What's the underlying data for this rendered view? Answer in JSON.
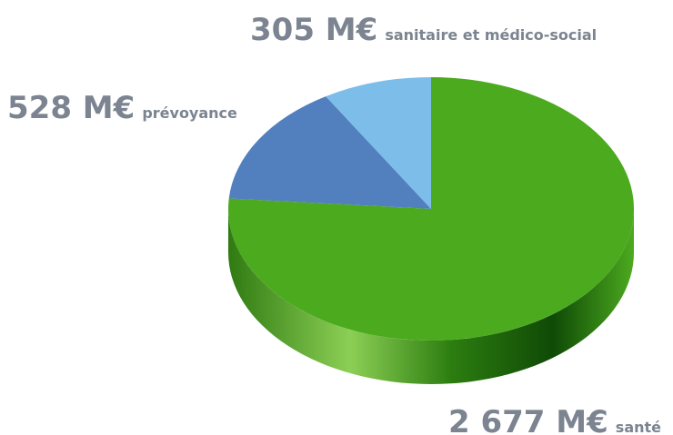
{
  "chart_data": {
    "type": "pie",
    "categories": [
      "santé",
      "prévoyance",
      "sanitaire et médico-social"
    ],
    "values": [
      2677,
      528,
      305
    ],
    "value_labels": [
      "2 677 M€",
      "528 M€",
      "305 M€"
    ],
    "colors": [
      "#4caa1f",
      "#3f72b8",
      "#6fb6e8"
    ]
  }
}
